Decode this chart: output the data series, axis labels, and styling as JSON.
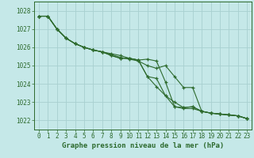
{
  "xlabel": "Graphe pression niveau de la mer (hPa)",
  "background_color": "#c5e8e8",
  "grid_color": "#a8d0d0",
  "line_color": "#2d6a2d",
  "text_color": "#2d6a2d",
  "ylim": [
    1021.5,
    1028.5
  ],
  "xlim": [
    -0.5,
    23.5
  ],
  "yticks": [
    1022,
    1023,
    1024,
    1025,
    1026,
    1027,
    1028
  ],
  "xticks": [
    0,
    1,
    2,
    3,
    4,
    5,
    6,
    7,
    8,
    9,
    10,
    11,
    12,
    13,
    14,
    15,
    16,
    17,
    18,
    19,
    20,
    21,
    22,
    23
  ],
  "series": [
    [
      1027.7,
      1027.7,
      1027.0,
      1026.5,
      1026.2,
      1026.0,
      1025.85,
      1025.75,
      1025.65,
      1025.55,
      1025.4,
      1025.3,
      1025.35,
      1025.25,
      1024.1,
      1022.75,
      1022.65,
      1022.65,
      1022.5,
      1022.4,
      1022.35,
      1022.3,
      1022.25,
      1022.1
    ],
    [
      1027.7,
      1027.7,
      1027.0,
      1026.5,
      1026.2,
      1026.0,
      1025.85,
      1025.75,
      1025.6,
      1025.45,
      1025.35,
      1025.25,
      1025.0,
      1024.85,
      1025.0,
      1024.4,
      1023.8,
      1023.8,
      1022.5,
      1022.4,
      1022.35,
      1022.3,
      1022.25,
      1022.1
    ],
    [
      1027.7,
      1027.7,
      1027.0,
      1026.5,
      1026.2,
      1026.0,
      1025.85,
      1025.75,
      1025.55,
      1025.4,
      1025.4,
      1025.3,
      1024.4,
      1023.85,
      1023.35,
      1023.0,
      1022.7,
      1022.75,
      1022.5,
      1022.4,
      1022.35,
      1022.3,
      1022.25,
      1022.1
    ],
    [
      1027.7,
      1027.7,
      1027.0,
      1026.5,
      1026.2,
      1026.0,
      1025.85,
      1025.75,
      1025.55,
      1025.4,
      1025.4,
      1025.3,
      1024.4,
      1024.3,
      1023.35,
      1022.75,
      1022.7,
      1022.75,
      1022.5,
      1022.4,
      1022.35,
      1022.3,
      1022.25,
      1022.1
    ]
  ],
  "marker": "+",
  "markersize": 3,
  "linewidth": 0.8,
  "tick_fontsize": 5.5,
  "xlabel_fontsize": 6.5
}
